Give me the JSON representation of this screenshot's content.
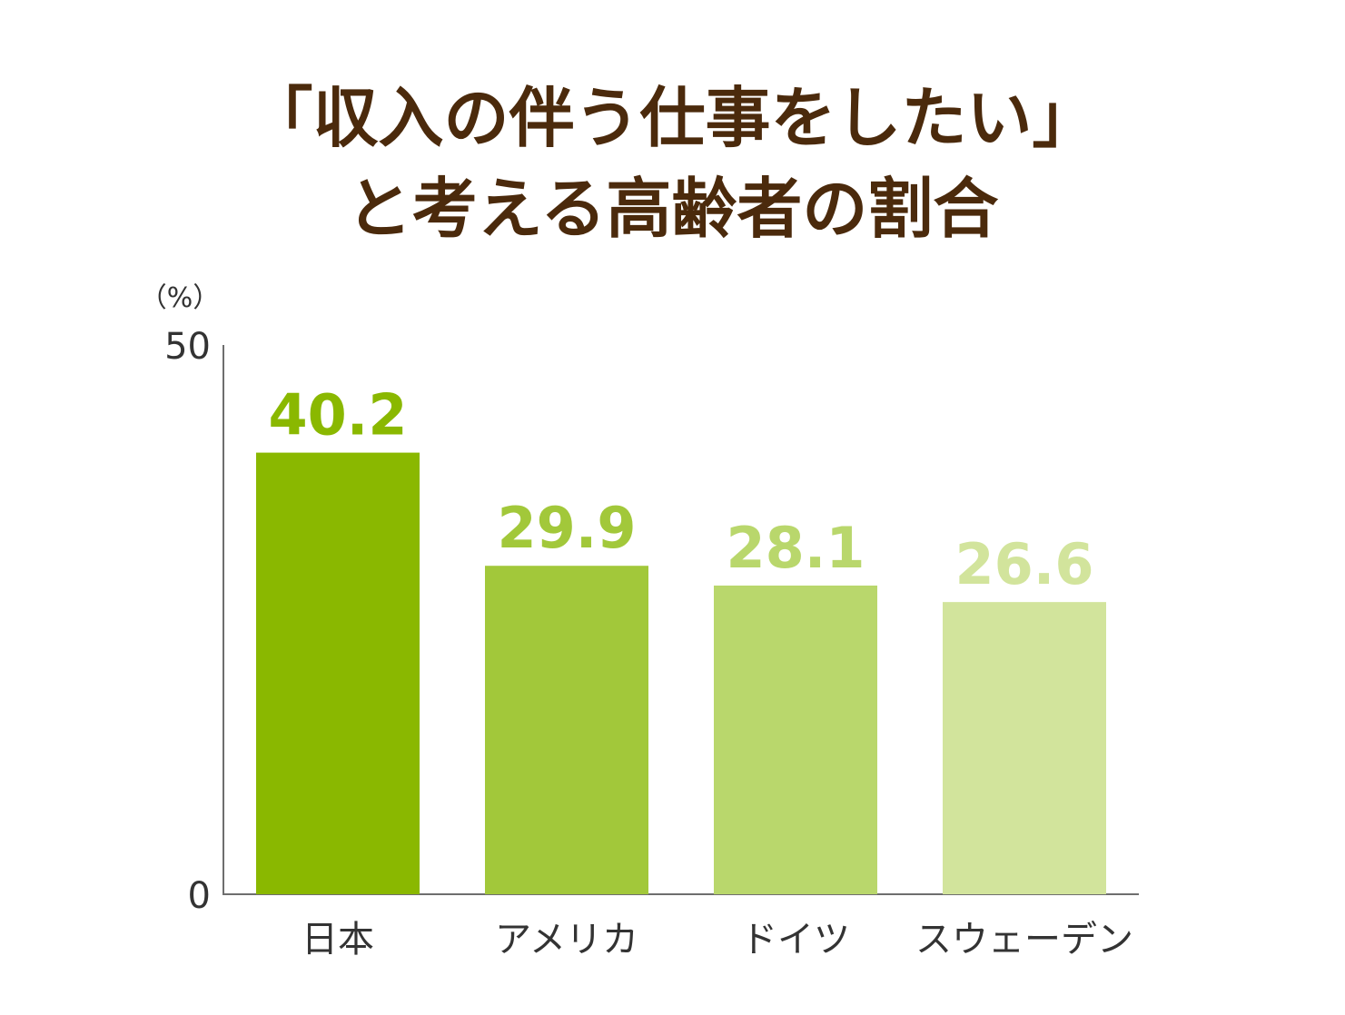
{
  "title_lines": [
    "「収入の伴う仕事をしたい」",
    "と考える高齢者の割合"
  ],
  "chart_data": {
    "type": "bar",
    "categories": [
      "日本",
      "アメリカ",
      "ドイツ",
      "スウェーデン"
    ],
    "values": [
      40.2,
      29.9,
      28.1,
      26.6
    ],
    "value_labels": [
      "40.2",
      "29.9",
      "28.1",
      "26.6"
    ],
    "unit_label": "（%）",
    "ylim": [
      0,
      50
    ],
    "yticks": [
      "0",
      "50"
    ],
    "grid": false,
    "colors": [
      "#8ab800",
      "#a2c83a",
      "#b9d76c",
      "#d2e49c"
    ],
    "axis_color": "#6e6e6e",
    "text_color": "#333333"
  }
}
